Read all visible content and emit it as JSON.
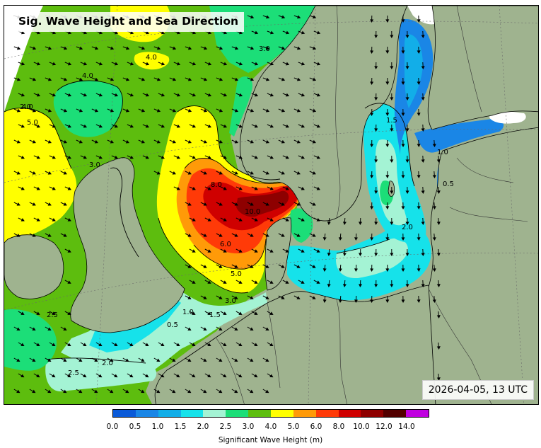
{
  "title": "Sig. Wave Height and Sea Direction",
  "valid_time": "2026-04-05, 13 UTC",
  "colorbar": {
    "label": "Significant Wave Height (m)",
    "ticks": [
      "0.0",
      "0.5",
      "1.0",
      "1.5",
      "2.0",
      "2.5",
      "3.0",
      "4.0",
      "5.0",
      "6.0",
      "8.0",
      "10.0",
      "12.0",
      "14.0"
    ],
    "colors": [
      "#0a5ad8",
      "#1a86e6",
      "#12aee8",
      "#16e2ea",
      "#a4f3d4",
      "#1cde78",
      "#5dbd0e",
      "#ffff00",
      "#ff9a08",
      "#ff3a08",
      "#cf0000",
      "#8e0000",
      "#520000",
      "#c000e0"
    ]
  },
  "contour_labels": [
    "2.0",
    "3.0",
    "4.0",
    "5.0",
    "6.0",
    "8.0",
    "10.0",
    "4.0",
    "5.0",
    "3.0",
    "2.5",
    "2.0",
    "1.5",
    "1.0",
    "0.5",
    "4.0",
    "3.0",
    "2.5",
    "2.0",
    "1.5",
    "1.0",
    "0.5"
  ],
  "colors": {
    "land": "#9fb38f",
    "sea_ice": "#ffffff"
  }
}
